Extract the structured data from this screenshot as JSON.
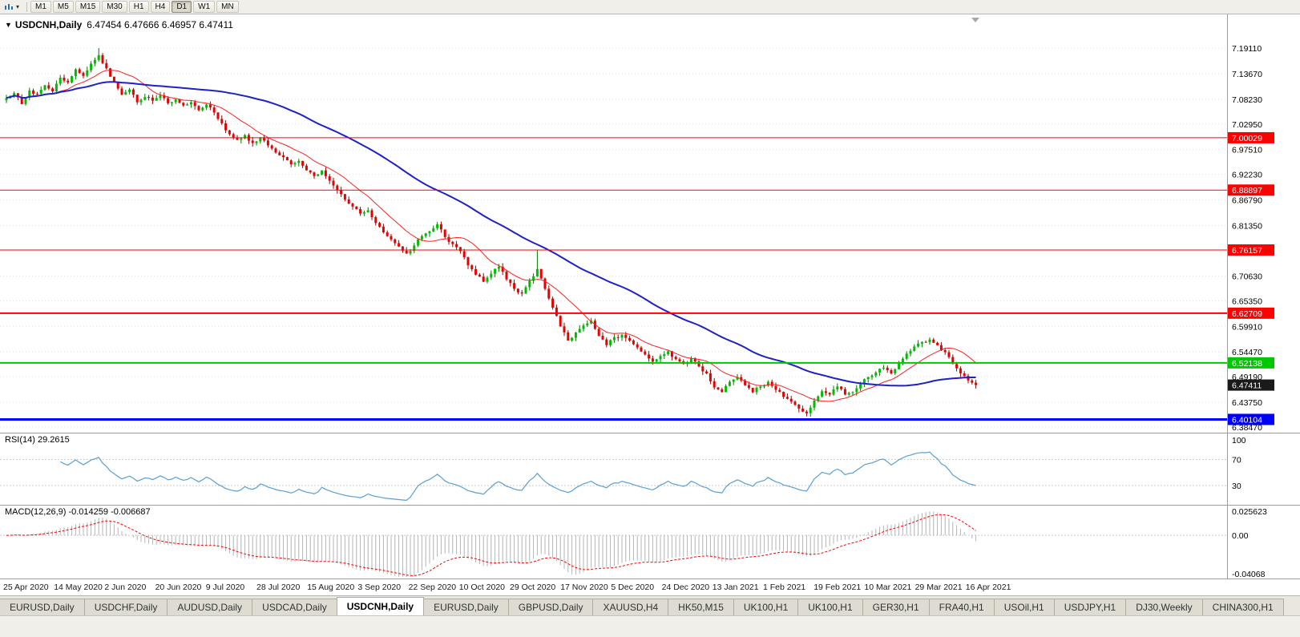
{
  "toolbar": {
    "timeframes": [
      "M1",
      "M5",
      "M15",
      "M30",
      "H1",
      "H4",
      "D1",
      "W1",
      "MN"
    ],
    "active": "D1"
  },
  "chart": {
    "collapse_arrow": "▼",
    "title": "USDCNH,Daily",
    "ohlc": "6.47454 6.47666 6.46957 6.47411"
  },
  "colors": {
    "up": "#00bb00",
    "up_border": "#007a00",
    "down": "#e60000",
    "down_border": "#9c0000",
    "ma_fast": "#ff2020",
    "ma_slow": "#2020c8",
    "rsi": "#5a9fd4",
    "macd_hist": "#b4b4b4",
    "macd_signal": "#ff0000",
    "grid": "#e0e0e0",
    "panel_divider": "#9b9b9b",
    "current_tag_bg": "#1a1a1a"
  },
  "axis": {
    "ticks": [
      7.1911,
      7.1367,
      7.0823,
      7.0295,
      6.9751,
      6.9223,
      6.8679,
      6.8135,
      6.7063,
      6.6535,
      6.5991,
      6.5447,
      6.4919,
      6.4375,
      6.3847
    ],
    "lines": [
      {
        "value": 7.00029,
        "label": "7.00029",
        "color": "#ff0000",
        "width": 1
      },
      {
        "value": 6.88897,
        "label": "6.88897",
        "color": "#ff0000",
        "width": 1
      },
      {
        "value": 6.76157,
        "label": "6.76157",
        "color": "#ff0000",
        "width": 1
      },
      {
        "value": 6.62709,
        "label": "6.62709",
        "color": "#ff0000",
        "width": 2
      },
      {
        "value": 6.52138,
        "label": "6.52138",
        "color": "#00c800",
        "width": 2
      },
      {
        "value": 6.40104,
        "label": "6.40104",
        "color": "#0000ff",
        "width": 3
      }
    ],
    "current": {
      "value": 6.47411,
      "label": "6.47411"
    }
  },
  "rsi": {
    "label": "RSI(14) 29.2615",
    "period": 14,
    "value": 29.2615,
    "ticks": [
      {
        "v": 100,
        "label": "100",
        "dashed": false
      },
      {
        "v": 70,
        "label": "70",
        "dashed": true
      },
      {
        "v": 30,
        "label": "30",
        "dashed": true
      }
    ]
  },
  "macd": {
    "label": "MACD(12,26,9) -0.014259 -0.006687",
    "params": "12,26,9",
    "value": -0.014259,
    "signal": -0.006687,
    "ticks": [
      {
        "v": 0.025623,
        "label": "0.025623",
        "dashed": false
      },
      {
        "v": 0,
        "label": "0.00",
        "dashed": true
      },
      {
        "v": -0.04068,
        "label": "-0.04068",
        "dashed": false
      }
    ]
  },
  "dates": [
    "25 Apr 2020",
    "14 May 2020",
    "2 Jun 2020",
    "20 Jun 2020",
    "9 Jul 2020",
    "28 Jul 2020",
    "15 Aug 2020",
    "3 Sep 2020",
    "22 Sep 2020",
    "10 Oct 2020",
    "29 Oct 2020",
    "17 Nov 2020",
    "5 Dec 2020",
    "24 Dec 2020",
    "13 Jan 2021",
    "1 Feb 2021",
    "19 Feb 2021",
    "10 Mar 2021",
    "29 Mar 2021",
    "16 Apr 2021"
  ],
  "tabs": {
    "items": [
      "EURUSD,Daily",
      "USDCHF,Daily",
      "AUDUSD,Daily",
      "USDCAD,Daily",
      "USDCNH,Daily",
      "EURUSD,Daily",
      "GBPUSD,Daily",
      "XAUUSD,H4",
      "HK50,M15",
      "UK100,H1",
      "UK100,H1",
      "GER30,H1",
      "FRA40,H1",
      "USOil,H1",
      "USDJPY,H1",
      "DJ30,Weekly",
      "CHINA300,H1"
    ],
    "active_index": 4
  },
  "chart_data": {
    "type": "candlestick",
    "symbol": "USDCNH",
    "timeframe": "Daily",
    "ohlc_display": {
      "open": 6.47454,
      "high": 6.47666,
      "low": 6.46957,
      "close": 6.47411
    },
    "price_range_shown": [
      6.3847,
      7.1911
    ],
    "first_open": 7.08,
    "last_close": 6.4741,
    "closes_2day": [
      7.085,
      7.095,
      7.072,
      7.101,
      7.094,
      7.112,
      7.099,
      7.128,
      7.118,
      7.146,
      7.132,
      7.158,
      7.176,
      7.148,
      7.119,
      7.092,
      7.103,
      7.076,
      7.087,
      7.079,
      7.091,
      7.074,
      7.082,
      7.069,
      7.076,
      7.059,
      7.071,
      7.054,
      7.031,
      7.008,
      6.996,
      7.006,
      6.989,
      7.001,
      6.984,
      6.969,
      6.959,
      6.944,
      6.951,
      6.931,
      6.919,
      6.931,
      6.909,
      6.889,
      6.869,
      6.854,
      6.839,
      6.846,
      6.819,
      6.799,
      6.784,
      6.769,
      6.754,
      6.771,
      6.791,
      6.801,
      6.816,
      6.789,
      6.774,
      6.759,
      6.729,
      6.709,
      6.694,
      6.711,
      6.726,
      6.699,
      6.679,
      6.669,
      6.696,
      6.721,
      6.679,
      6.639,
      6.599,
      6.569,
      6.586,
      6.601,
      6.611,
      6.579,
      6.559,
      6.576,
      6.581,
      6.569,
      6.554,
      6.539,
      6.524,
      6.536,
      6.546,
      6.529,
      6.519,
      6.531,
      6.514,
      6.499,
      6.469,
      6.459,
      6.481,
      6.491,
      6.474,
      6.459,
      6.471,
      6.481,
      6.464,
      6.449,
      6.439,
      6.424,
      6.414,
      6.441,
      6.461,
      6.454,
      6.471,
      6.454,
      6.459,
      6.476,
      6.491,
      6.501,
      6.511,
      6.499,
      6.521,
      6.541,
      6.556,
      6.566,
      6.571,
      6.559,
      6.544,
      6.519,
      6.499,
      6.484,
      6.474
    ],
    "wick_overrides": [
      {
        "index": 12,
        "high": 7.1911
      },
      {
        "index": 69,
        "high": 6.7616
      },
      {
        "index": 104,
        "low": 6.4075
      }
    ],
    "support_resistance_lines": [
      7.00029,
      6.88897,
      6.76157,
      6.62709,
      6.52138,
      6.40104
    ],
    "moving_averages": [
      {
        "name": "fast-ma",
        "color": "#ff2020",
        "approx_period_days": 20
      },
      {
        "name": "slow-ma",
        "color": "#2020c8",
        "approx_period_days": 55
      }
    ],
    "indicators": {
      "rsi": {
        "period": 14,
        "last_value": 29.2615,
        "levels": [
          30,
          70
        ]
      },
      "macd": {
        "fast": 12,
        "slow": 26,
        "signal": 9,
        "last_value": -0.014259,
        "last_signal": -0.006687,
        "panel_range": [
          -0.04068,
          0.025623
        ]
      }
    }
  }
}
